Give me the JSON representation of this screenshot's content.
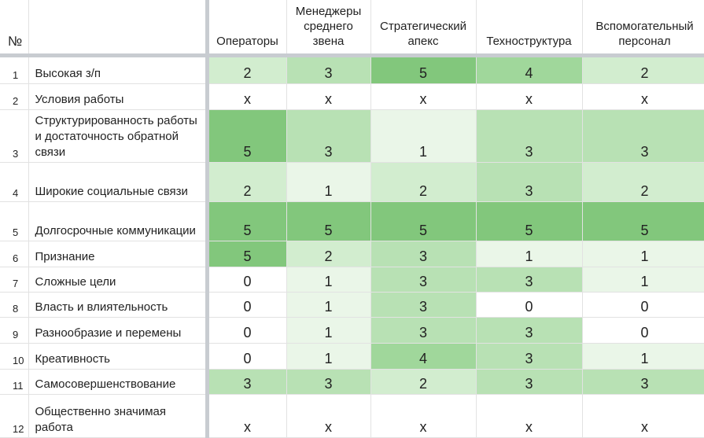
{
  "header": {
    "num": "№",
    "label": "",
    "columns": [
      "Операторы",
      "Менеджеры среднего звена",
      "Стратегический апекс",
      "Техноструктура",
      "Вспомогательный персонал"
    ]
  },
  "rows": [
    {
      "n": "1",
      "label": "Высокая з/п",
      "values": [
        "2",
        "3",
        "5",
        "4",
        "2"
      ]
    },
    {
      "n": "2",
      "label": "Условия работы",
      "values": [
        "x",
        "x",
        "x",
        "x",
        "x"
      ]
    },
    {
      "n": "3",
      "label": "Структурированность работы и достаточность обратной связи",
      "values": [
        "5",
        "3",
        "1",
        "3",
        "3"
      ]
    },
    {
      "n": "4",
      "label": "Широкие социальные связи",
      "values": [
        "2",
        "1",
        "2",
        "3",
        "2"
      ]
    },
    {
      "n": "5",
      "label": "Долгосрочные коммуникации",
      "values": [
        "5",
        "5",
        "5",
        "5",
        "5"
      ]
    },
    {
      "n": "6",
      "label": "Признание",
      "values": [
        "5",
        "2",
        "3",
        "1",
        "1"
      ]
    },
    {
      "n": "7",
      "label": "Сложные цели",
      "values": [
        "0",
        "1",
        "3",
        "3",
        "1"
      ]
    },
    {
      "n": "8",
      "label": "Власть и влиятельность",
      "values": [
        "0",
        "1",
        "3",
        "0",
        "0"
      ]
    },
    {
      "n": "9",
      "label": "Разнообразие и перемены",
      "values": [
        "0",
        "1",
        "3",
        "3",
        "0"
      ]
    },
    {
      "n": "10",
      "label": "Креативность",
      "values": [
        "0",
        "1",
        "4",
        "3",
        "1"
      ]
    },
    {
      "n": "11",
      "label": "Самосовершенствование",
      "values": [
        "3",
        "3",
        "2",
        "3",
        "3"
      ]
    },
    {
      "n": "12",
      "label": "Общественно значимая работа",
      "values": [
        "x",
        "x",
        "x",
        "x",
        "x"
      ]
    }
  ],
  "colors": {
    "0": "#ffffff",
    "1": "#eaf6e8",
    "2": "#d2edcf",
    "3": "#b8e1b4",
    "4": "#a0d79b",
    "5": "#82c77c",
    "x": "#ffffff",
    "grid": "#e2e2e2",
    "separator": "#c8ccd1"
  }
}
